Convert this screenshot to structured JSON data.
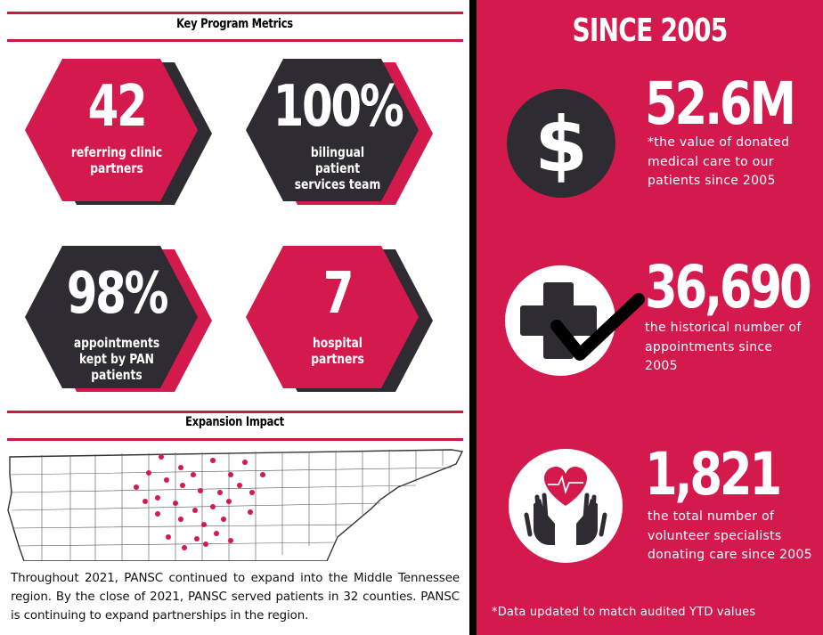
{
  "colors": {
    "brand_red": "#d41a4d",
    "dark": "#2e2b33",
    "white": "#ffffff"
  },
  "left": {
    "metrics_title": "Key Program Metrics",
    "metrics": [
      {
        "number": "42",
        "label": "referring clinic partners"
      },
      {
        "number": "100%",
        "label": "bilingual patient services team"
      },
      {
        "number": "98%",
        "label": "appointments kept by PAN patients"
      },
      {
        "number": "7",
        "label": "hospital partners"
      }
    ],
    "expansion_title": "Expansion Impact",
    "expansion_text": "Throughout 2021, PANSC continued to expand into the Middle Tennessee region. By the close of 2021, PANSC served patients in 32 counties. PANSC is continuing to expand partnerships in the region."
  },
  "right": {
    "title": "SINCE 2005",
    "stats": [
      {
        "icon": "dollar-icon",
        "value": "52.6M",
        "description": "*the value of donated medical care to our patients since 2005"
      },
      {
        "icon": "medical-cross-check-icon",
        "value": "36,690",
        "description": "the historical number of appointments since 2005"
      },
      {
        "icon": "heart-hands-icon",
        "value": "1,821",
        "description": "the total number of volunteer specialists donating care since 2005"
      }
    ],
    "footnote": "*Data updated to match audited YTD values"
  }
}
